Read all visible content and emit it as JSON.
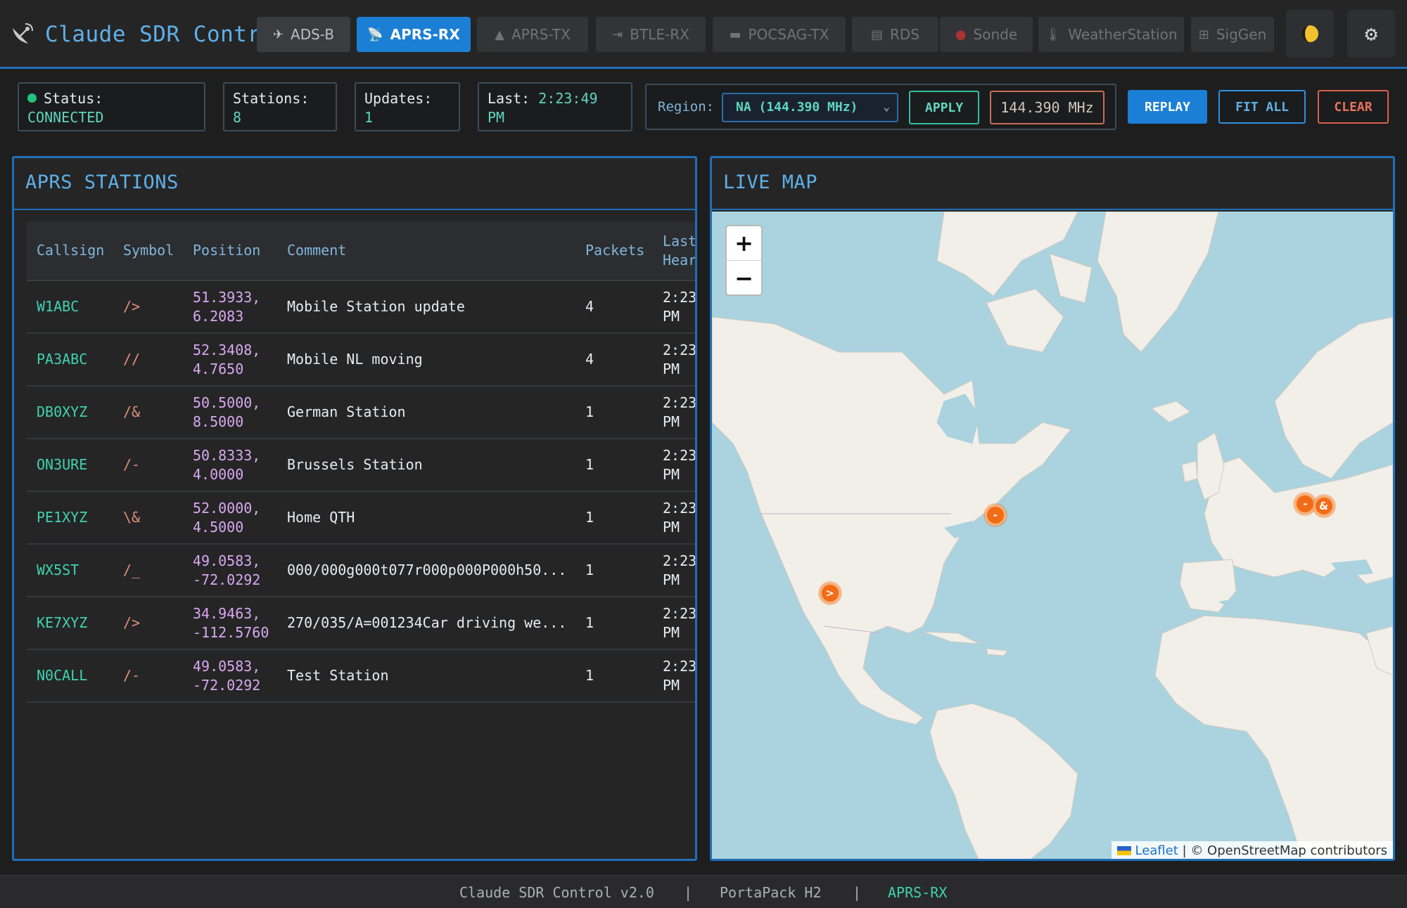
{
  "app": {
    "title": "Claude SDR Control"
  },
  "tabs": [
    {
      "label": "ADS-B",
      "icon": "airplane-icon"
    },
    {
      "label": "APRS-RX",
      "icon": "satellite-dish-icon"
    },
    {
      "label": "APRS-TX",
      "icon": "transmit-icon"
    },
    {
      "label": "BTLE-RX",
      "icon": "bluetooth-icon"
    },
    {
      "label": "POCSAG-TX",
      "icon": "pager-icon"
    },
    {
      "label": "RDS",
      "icon": "radio-icon"
    },
    {
      "label": "Sonde",
      "icon": "balloon-icon"
    },
    {
      "label": "WeatherStation",
      "icon": "thermometer-icon"
    },
    {
      "label": "SigGen",
      "icon": "grid-icon"
    }
  ],
  "header_icons": [
    "theme-toggle-icon",
    "gear-icon"
  ],
  "status": {
    "status_label": "Status:",
    "status_value": "CONNECTED",
    "stations_label": "Stations:",
    "stations_value": "8",
    "updates_label": "Updates:",
    "updates_value": "1",
    "last_label": "Last:",
    "last_time": "2:23:49",
    "last_ampm": "PM"
  },
  "region": {
    "label": "Region:",
    "selected": "NA (144.390 MHz)",
    "apply_label": "APPLY",
    "frequency": "144.390 MHz"
  },
  "actions": {
    "replay": "REPLAY",
    "fit_all": "FIT ALL",
    "clear": "CLEAR"
  },
  "stations_panel": {
    "title": "APRS STATIONS",
    "columns": [
      "Callsign",
      "Symbol",
      "Position",
      "Comment",
      "Packets",
      "Last Heard"
    ],
    "rows": [
      {
        "callsign": "W1ABC",
        "symbol": "/>",
        "lat": "51.3933,",
        "lon": "6.2083",
        "comment": "Mobile Station update",
        "packets": "4",
        "time": "2:23",
        "ampm": "PM"
      },
      {
        "callsign": "PA3ABC",
        "symbol": "//",
        "lat": "52.3408,",
        "lon": "4.7650",
        "comment": "Mobile NL moving",
        "packets": "4",
        "time": "2:23",
        "ampm": "PM"
      },
      {
        "callsign": "DB0XYZ",
        "symbol": "/&",
        "lat": "50.5000,",
        "lon": "8.5000",
        "comment": "German Station",
        "packets": "1",
        "time": "2:23",
        "ampm": "PM"
      },
      {
        "callsign": "ON3URE",
        "symbol": "/-",
        "lat": "50.8333,",
        "lon": "4.0000",
        "comment": "Brussels Station",
        "packets": "1",
        "time": "2:23",
        "ampm": "PM"
      },
      {
        "callsign": "PE1XYZ",
        "symbol": "\\&",
        "lat": "52.0000,",
        "lon": "4.5000",
        "comment": "Home QTH",
        "packets": "1",
        "time": "2:23",
        "ampm": "PM"
      },
      {
        "callsign": "WX5ST",
        "symbol": "/_",
        "lat": "49.0583,",
        "lon": "-72.0292",
        "comment": "000/000g000t077r000p000P000h50...",
        "packets": "1",
        "time": "2:23",
        "ampm": "PM"
      },
      {
        "callsign": "KE7XYZ",
        "symbol": "/>",
        "lat": "34.9463,",
        "lon": "-112.5760",
        "comment": "270/035/A=001234Car driving we...",
        "packets": "1",
        "time": "2:23",
        "ampm": "PM"
      },
      {
        "callsign": "N0CALL",
        "symbol": "/-",
        "lat": "49.0583,",
        "lon": "-72.0292",
        "comment": "Test Station",
        "packets": "1",
        "time": "2:23",
        "ampm": "PM"
      }
    ]
  },
  "map_panel": {
    "title": "LIVE MAP",
    "zoom_in": "+",
    "zoom_out": "−",
    "attribution_leaflet": "Leaflet",
    "attribution_sep": "|",
    "attribution_osm": "© OpenStreetMap contributors",
    "markers": [
      {
        "symbol": "-",
        "lat": 49.0583,
        "lon": -72.0292
      },
      {
        "symbol": ">",
        "lat": 34.9463,
        "lon": -112.576
      },
      {
        "symbol": "-",
        "lat": 50.8333,
        "lon": 4.0
      },
      {
        "symbol": "&",
        "lat": 50.5,
        "lon": 8.5
      }
    ]
  },
  "footer": {
    "version": "Claude SDR Control v2.0",
    "sep": "|",
    "device": "PortaPack H2",
    "mode": "APRS-RX"
  },
  "colors": {
    "accent": "#1b7fd6",
    "teal": "#3fd3b0",
    "marker": "#f26b16",
    "connected": "#22c47a"
  }
}
